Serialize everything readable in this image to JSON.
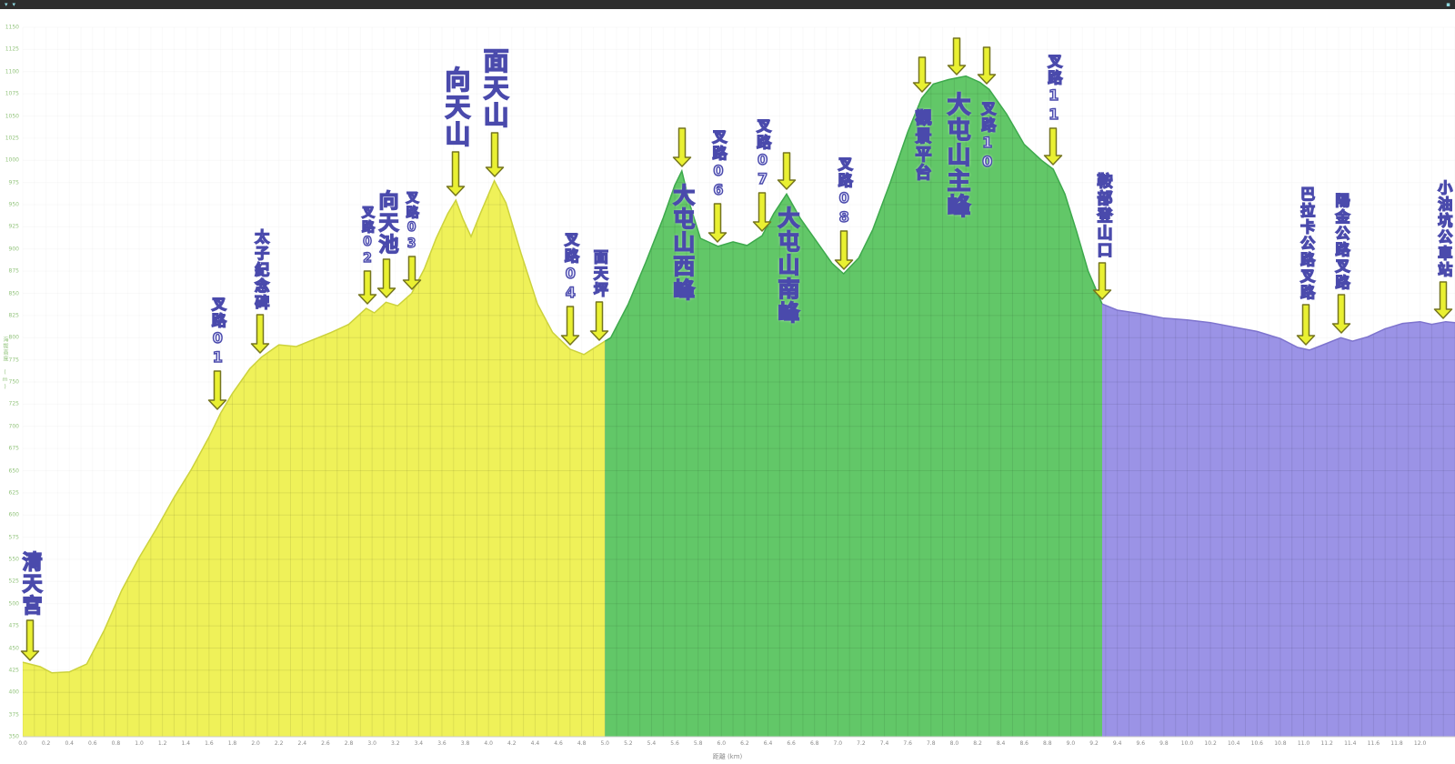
{
  "topbar": {
    "left_icon_1": "▾",
    "left_icon_2": "▾",
    "right_icon": "▪"
  },
  "chart_data": {
    "type": "area",
    "title": "",
    "xlabel": "距離 (km)",
    "ylabel": "海拔高度 (m)",
    "xlim": [
      0,
      12.3
    ],
    "ylim": [
      350,
      1150
    ],
    "x_ticks": {
      "min": 0.0,
      "max": 12.0,
      "step": 0.2
    },
    "y_ticks": {
      "min": 350,
      "max": 1150,
      "step": 25
    },
    "grid": true,
    "style": {
      "arrow_fill": "#e9f032",
      "arrow_stroke": "#75751e",
      "label_fill": "#ebebff",
      "label_stroke": "#4a4aac",
      "axis_tick_color": "#93c47d",
      "x_tick_color": "#8a8a8a"
    },
    "segments": [
      {
        "name": "segment-yellow",
        "color": "#eff159",
        "edge": "#ccd23c",
        "from": 0.0,
        "to": 5.0
      },
      {
        "name": "segment-green",
        "color": "#62c768",
        "edge": "#3da94c",
        "from": 5.0,
        "to": 9.27
      },
      {
        "name": "segment-purple",
        "color": "#9b93e6",
        "edge": "#7e74ce",
        "from": 9.27,
        "to": 12.3
      }
    ],
    "profile": [
      [
        0.0,
        434
      ],
      [
        0.15,
        429
      ],
      [
        0.25,
        422
      ],
      [
        0.4,
        423
      ],
      [
        0.55,
        432
      ],
      [
        0.7,
        470
      ],
      [
        0.85,
        515
      ],
      [
        1.0,
        552
      ],
      [
        1.15,
        585
      ],
      [
        1.3,
        620
      ],
      [
        1.45,
        652
      ],
      [
        1.6,
        688
      ],
      [
        1.7,
        715
      ],
      [
        1.8,
        737
      ],
      [
        1.95,
        765
      ],
      [
        2.05,
        778
      ],
      [
        2.2,
        792
      ],
      [
        2.35,
        790
      ],
      [
        2.5,
        798
      ],
      [
        2.65,
        806
      ],
      [
        2.8,
        815
      ],
      [
        2.95,
        833
      ],
      [
        3.02,
        828
      ],
      [
        3.12,
        840
      ],
      [
        3.22,
        836
      ],
      [
        3.34,
        850
      ],
      [
        3.45,
        878
      ],
      [
        3.55,
        912
      ],
      [
        3.65,
        940
      ],
      [
        3.72,
        955
      ],
      [
        3.78,
        934
      ],
      [
        3.85,
        914
      ],
      [
        3.93,
        940
      ],
      [
        4.05,
        977
      ],
      [
        4.15,
        952
      ],
      [
        4.28,
        895
      ],
      [
        4.42,
        838
      ],
      [
        4.55,
        806
      ],
      [
        4.7,
        787
      ],
      [
        4.82,
        781
      ],
      [
        4.95,
        792
      ],
      [
        5.05,
        800
      ],
      [
        5.2,
        838
      ],
      [
        5.35,
        885
      ],
      [
        5.5,
        935
      ],
      [
        5.6,
        972
      ],
      [
        5.66,
        988
      ],
      [
        5.73,
        950
      ],
      [
        5.82,
        912
      ],
      [
        5.97,
        903
      ],
      [
        6.1,
        908
      ],
      [
        6.22,
        904
      ],
      [
        6.35,
        915
      ],
      [
        6.45,
        940
      ],
      [
        6.56,
        962
      ],
      [
        6.68,
        934
      ],
      [
        6.82,
        908
      ],
      [
        6.95,
        884
      ],
      [
        7.05,
        872
      ],
      [
        7.18,
        890
      ],
      [
        7.3,
        922
      ],
      [
        7.45,
        975
      ],
      [
        7.6,
        1032
      ],
      [
        7.72,
        1070
      ],
      [
        7.82,
        1086
      ],
      [
        7.95,
        1091
      ],
      [
        8.1,
        1095
      ],
      [
        8.22,
        1088
      ],
      [
        8.3,
        1080
      ],
      [
        8.45,
        1052
      ],
      [
        8.6,
        1018
      ],
      [
        8.75,
        1000
      ],
      [
        8.85,
        990
      ],
      [
        8.95,
        962
      ],
      [
        9.05,
        920
      ],
      [
        9.15,
        875
      ],
      [
        9.27,
        838
      ],
      [
        9.4,
        831
      ],
      [
        9.6,
        827
      ],
      [
        9.8,
        822
      ],
      [
        10.0,
        820
      ],
      [
        10.2,
        817
      ],
      [
        10.4,
        812
      ],
      [
        10.6,
        807
      ],
      [
        10.8,
        799
      ],
      [
        10.95,
        789
      ],
      [
        11.05,
        786
      ],
      [
        11.15,
        791
      ],
      [
        11.32,
        800
      ],
      [
        11.42,
        796
      ],
      [
        11.55,
        801
      ],
      [
        11.7,
        810
      ],
      [
        11.85,
        816
      ],
      [
        12.0,
        818
      ],
      [
        12.1,
        815
      ],
      [
        12.22,
        818
      ],
      [
        12.3,
        817
      ]
    ],
    "waypoints": [
      {
        "label": "清天宮",
        "km": 0.06,
        "elev": 431,
        "pos": "above",
        "size": 22,
        "arrow_h": 46
      },
      {
        "label": "叉路01",
        "km": 1.67,
        "elev": 714,
        "pos": "above",
        "size": 16,
        "arrow_h": 44
      },
      {
        "label": "太子紀念碑",
        "km": 2.04,
        "elev": 778,
        "pos": "above",
        "size": 16,
        "arrow_h": 44
      },
      {
        "label": "叉路02",
        "km": 2.96,
        "elev": 833,
        "pos": "above",
        "size": 14,
        "arrow_h": 38
      },
      {
        "label": "向天池",
        "km": 3.12,
        "elev": 840,
        "pos": "above",
        "size": 22,
        "arrow_h": 44
      },
      {
        "label": "叉路03",
        "km": 3.34,
        "elev": 850,
        "pos": "above",
        "size": 14,
        "arrow_h": 38
      },
      {
        "label": "向天山",
        "km": 3.72,
        "elev": 955,
        "pos": "above",
        "size": 28,
        "arrow_h": 50
      },
      {
        "label": "面天山",
        "km": 4.05,
        "elev": 977,
        "pos": "above",
        "size": 28,
        "arrow_h": 50
      },
      {
        "label": "叉路04",
        "km": 4.7,
        "elev": 787,
        "pos": "above",
        "size": 16,
        "arrow_h": 44
      },
      {
        "label": "面天坪",
        "km": 4.95,
        "elev": 792,
        "pos": "above",
        "size": 16,
        "arrow_h": 44
      },
      {
        "label": "大屯山西峰",
        "km": 5.66,
        "elev": 988,
        "pos": "below",
        "size": 24,
        "arrow_h": 44
      },
      {
        "label": "叉路06",
        "km": 5.97,
        "elev": 903,
        "pos": "above",
        "size": 16,
        "arrow_h": 44
      },
      {
        "label": "叉路07",
        "km": 6.35,
        "elev": 915,
        "pos": "above",
        "size": 16,
        "arrow_h": 44
      },
      {
        "label": "大屯山南峰",
        "km": 6.56,
        "elev": 962,
        "pos": "below",
        "size": 24,
        "arrow_h": 42
      },
      {
        "label": "叉路08",
        "km": 7.05,
        "elev": 872,
        "pos": "above",
        "size": 16,
        "arrow_h": 44
      },
      {
        "label": "觀景平台",
        "km": 7.72,
        "elev": 1072,
        "pos": "below",
        "size": 18,
        "arrow_h": 40
      },
      {
        "label": "大屯山主峰",
        "km": 8.02,
        "elev": 1092,
        "pos": "below",
        "size": 26,
        "arrow_h": 42
      },
      {
        "label": "叉路10",
        "km": 8.28,
        "elev": 1081,
        "pos": "below",
        "size": 16,
        "arrow_h": 42
      },
      {
        "label": "叉路11",
        "km": 8.85,
        "elev": 990,
        "pos": "above",
        "size": 16,
        "arrow_h": 42
      },
      {
        "label": "鞍部登山口",
        "km": 9.27,
        "elev": 838,
        "pos": "above",
        "size": 17,
        "arrow_h": 42
      },
      {
        "label": "巴拉卡公路叉路",
        "km": 11.02,
        "elev": 787,
        "pos": "above",
        "size": 16,
        "arrow_h": 46
      },
      {
        "label": "陽金公路叉路",
        "km": 11.32,
        "elev": 800,
        "pos": "above",
        "size": 16,
        "arrow_h": 44
      },
      {
        "label": "小油坑公車站",
        "km": 12.2,
        "elev": 817,
        "pos": "above",
        "size": 16,
        "arrow_h": 42
      }
    ]
  }
}
